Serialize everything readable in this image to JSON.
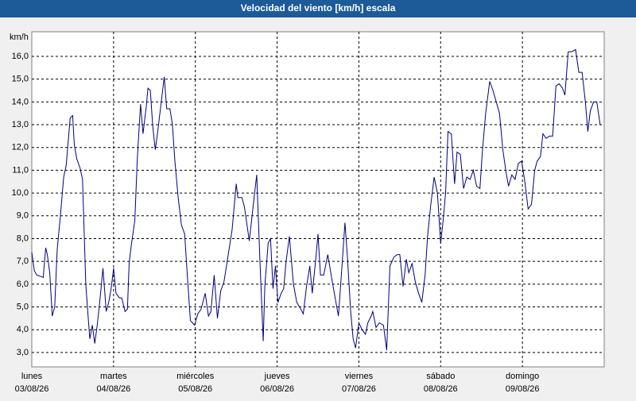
{
  "chart_data": {
    "type": "line",
    "title": "Velocidad del viento [km/h] escala",
    "y_unit": "km/h",
    "color": "#000080",
    "grid": true,
    "xlim": [
      0,
      7
    ],
    "ylim": [
      2.37,
      17.08
    ],
    "xticks": [
      {
        "value": 0,
        "label": "lunes"
      },
      {
        "value": 1,
        "label": "martes"
      },
      {
        "value": 2,
        "label": "miércoles"
      },
      {
        "value": 3,
        "label": "jueves"
      },
      {
        "value": 4,
        "label": "viernes"
      },
      {
        "value": 5,
        "label": "sábado"
      },
      {
        "value": 6,
        "label": "domingo"
      }
    ],
    "xtick_dates": [
      "03/08/26",
      "04/08/26",
      "05/08/26",
      "06/08/26",
      "07/08/26",
      "08/08/26",
      "09/08/26"
    ],
    "yticks": [
      {
        "value": 3,
        "label": "3,0"
      },
      {
        "value": 4,
        "label": "4,0"
      },
      {
        "value": 5,
        "label": "5,0"
      },
      {
        "value": 6,
        "label": "6,0"
      },
      {
        "value": 7,
        "label": "7,0"
      },
      {
        "value": 8,
        "label": "8,0"
      },
      {
        "value": 9,
        "label": "9,0"
      },
      {
        "value": 10,
        "label": "10,0"
      },
      {
        "value": 11,
        "label": "11,0"
      },
      {
        "value": 12,
        "label": "12,0"
      },
      {
        "value": 13,
        "label": "13,0"
      },
      {
        "value": 14,
        "label": "14,0"
      },
      {
        "value": 15,
        "label": "15,0"
      },
      {
        "value": 16,
        "label": "16,0"
      }
    ],
    "x": [
      0,
      0.03,
      0.06,
      0.1,
      0.14,
      0.17,
      0.19,
      0.22,
      0.25,
      0.28,
      0.31,
      0.35,
      0.39,
      0.42,
      0.47,
      0.5,
      0.52,
      0.55,
      0.59,
      0.62,
      0.66,
      0.69,
      0.71,
      0.74,
      0.77,
      0.8,
      0.83,
      0.87,
      0.91,
      0.94,
      0.97,
      1.0,
      1.03,
      1.07,
      1.1,
      1.14,
      1.17,
      1.19,
      1.22,
      1.26,
      1.29,
      1.33,
      1.36,
      1.4,
      1.42,
      1.45,
      1.48,
      1.51,
      1.54,
      1.58,
      1.62,
      1.65,
      1.69,
      1.72,
      1.75,
      1.79,
      1.83,
      1.87,
      1.9,
      1.94,
      1.99,
      2.03,
      2.07,
      2.12,
      2.16,
      2.19,
      2.23,
      2.27,
      2.31,
      2.35,
      2.39,
      2.45,
      2.5,
      2.52,
      2.57,
      2.6,
      2.66,
      2.7,
      2.75,
      2.79,
      2.83,
      2.85,
      2.89,
      2.92,
      2.95,
      2.98,
      3.01,
      3.05,
      3.08,
      3.11,
      3.15,
      3.2,
      3.24,
      3.29,
      3.32,
      3.36,
      3.4,
      3.43,
      3.47,
      3.5,
      3.53,
      3.57,
      3.62,
      3.67,
      3.72,
      3.75,
      3.79,
      3.83,
      3.86,
      3.9,
      3.93,
      3.96,
      4.0,
      4.04,
      4.08,
      4.11,
      4.15,
      4.17,
      4.21,
      4.25,
      4.3,
      4.34,
      4.38,
      4.43,
      4.47,
      4.5,
      4.54,
      4.58,
      4.61,
      4.65,
      4.69,
      4.73,
      4.77,
      4.81,
      4.84,
      4.88,
      4.92,
      4.96,
      5.0,
      5.03,
      5.06,
      5.09,
      5.13,
      5.17,
      5.2,
      5.24,
      5.28,
      5.32,
      5.36,
      5.4,
      5.44,
      5.48,
      5.51,
      5.55,
      5.6,
      5.64,
      5.68,
      5.72,
      5.76,
      5.8,
      5.83,
      5.87,
      5.91,
      5.95,
      5.99,
      6.03,
      6.07,
      6.11,
      6.15,
      6.18,
      6.22,
      6.25,
      6.29,
      6.33,
      6.37,
      6.41,
      6.45,
      6.49,
      6.52,
      6.56,
      6.6,
      6.65,
      6.69,
      6.73,
      6.77,
      6.8,
      6.83,
      6.87,
      6.91,
      6.95
    ],
    "values": [
      7.4,
      6.6,
      6.4,
      6.35,
      6.3,
      7.6,
      7.3,
      6.5,
      4.6,
      5.0,
      7.5,
      9.0,
      10.7,
      11.2,
      13.3,
      13.4,
      12.1,
      11.5,
      11.1,
      10.6,
      6.0,
      4.5,
      3.6,
      4.2,
      3.4,
      4.2,
      5.2,
      6.7,
      4.8,
      5.2,
      5.8,
      6.7,
      5.6,
      5.4,
      5.4,
      4.8,
      4.9,
      6.9,
      7.8,
      8.8,
      11.5,
      13.9,
      12.6,
      13.8,
      14.6,
      14.5,
      12.9,
      11.9,
      12.7,
      13.9,
      15.1,
      13.7,
      13.7,
      13.0,
      11.4,
      9.8,
      8.6,
      8.2,
      6.5,
      4.4,
      4.2,
      4.7,
      4.9,
      5.6,
      4.6,
      4.8,
      6.4,
      4.5,
      5.7,
      6.1,
      7.0,
      8.4,
      10.4,
      9.8,
      9.8,
      9.4,
      7.9,
      9.2,
      10.8,
      7.0,
      3.5,
      5.9,
      7.8,
      8.0,
      5.8,
      6.8,
      5.2,
      5.6,
      5.8,
      7.0,
      8.1,
      6.0,
      5.2,
      4.9,
      4.7,
      5.9,
      6.8,
      5.6,
      7.0,
      8.2,
      6.4,
      6.4,
      7.3,
      6.2,
      5.2,
      4.6,
      6.6,
      8.7,
      7.2,
      4.8,
      3.6,
      3.2,
      4.3,
      4.0,
      3.8,
      4.3,
      4.6,
      4.8,
      4.1,
      4.3,
      4.2,
      3.1,
      6.8,
      7.2,
      7.3,
      7.3,
      5.9,
      7.1,
      6.5,
      6.9,
      6.1,
      5.6,
      5.2,
      6.4,
      8.1,
      9.5,
      10.7,
      10.0,
      7.8,
      8.8,
      10.0,
      12.7,
      12.6,
      10.4,
      11.8,
      11.7,
      10.2,
      10.7,
      10.6,
      11.0,
      10.3,
      10.2,
      11.8,
      13.5,
      14.9,
      14.5,
      14.0,
      13.5,
      11.9,
      10.9,
      10.3,
      10.8,
      10.6,
      11.3,
      11.4,
      10.5,
      9.3,
      9.5,
      11.0,
      11.4,
      11.6,
      12.6,
      12.4,
      12.5,
      12.5,
      14.7,
      14.8,
      14.6,
      14.3,
      16.2,
      16.2,
      16.3,
      15.3,
      15.3,
      14.0,
      12.7,
      13.6,
      14.0,
      14.0,
      13.0
    ]
  }
}
